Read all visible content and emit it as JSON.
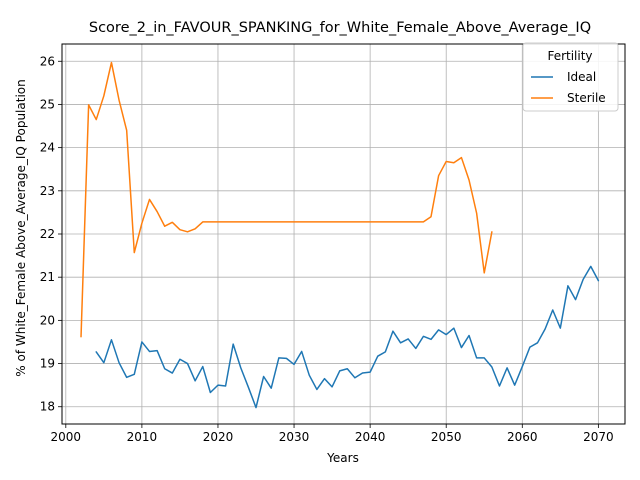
{
  "chart_data": {
    "type": "line",
    "title": "Score_2_in_FAVOUR_SPANKING_for_White_Female_Above_Average_IQ",
    "xlabel": "Years",
    "ylabel": "% of White_Female Above_Average_IQ Population",
    "xlim": [
      1999.5,
      2073.5
    ],
    "ylim": [
      17.6,
      26.4
    ],
    "xticks": [
      2000,
      2010,
      2020,
      2030,
      2040,
      2050,
      2060,
      2070
    ],
    "yticks": [
      18,
      19,
      20,
      21,
      22,
      23,
      24,
      25,
      26
    ],
    "grid": true,
    "legend": {
      "title": "Fertility",
      "placement": "top-right"
    },
    "series": [
      {
        "name": "Ideal",
        "color": "#1f77b4",
        "x": [
          2004,
          2005,
          2006,
          2007,
          2008,
          2009,
          2010,
          2011,
          2012,
          2013,
          2014,
          2015,
          2016,
          2017,
          2018,
          2019,
          2020,
          2021,
          2022,
          2023,
          2024,
          2025,
          2026,
          2027,
          2028,
          2029,
          2030,
          2031,
          2032,
          2033,
          2034,
          2035,
          2036,
          2037,
          2038,
          2039,
          2040,
          2041,
          2042,
          2043,
          2044,
          2045,
          2046,
          2047,
          2048,
          2049,
          2050,
          2051,
          2052,
          2053,
          2054,
          2055,
          2056,
          2057,
          2058,
          2059,
          2060,
          2061,
          2062,
          2063,
          2064,
          2065,
          2066,
          2067,
          2068,
          2069,
          2070
        ],
        "values": [
          19.27,
          19.02,
          19.55,
          19.02,
          18.68,
          18.75,
          19.5,
          19.28,
          19.3,
          18.88,
          18.78,
          19.1,
          19.0,
          18.6,
          18.93,
          18.33,
          18.5,
          18.48,
          19.45,
          18.9,
          18.45,
          17.98,
          18.7,
          18.43,
          19.13,
          19.12,
          18.98,
          19.28,
          18.73,
          18.4,
          18.65,
          18.46,
          18.83,
          18.88,
          18.67,
          18.78,
          18.8,
          19.17,
          19.27,
          19.75,
          19.48,
          19.57,
          19.35,
          19.63,
          19.56,
          19.78,
          19.67,
          19.82,
          19.37,
          19.65,
          19.13,
          19.13,
          18.92,
          18.48,
          18.9,
          18.5,
          18.93,
          19.38,
          19.48,
          19.8,
          20.24,
          19.82,
          20.8,
          20.48,
          20.95,
          21.25,
          20.92
        ]
      },
      {
        "name": "Sterile",
        "color": "#ff7f0e",
        "x": [
          2002,
          2003,
          2004,
          2005,
          2006,
          2007,
          2008,
          2009,
          2010,
          2011,
          2012,
          2013,
          2014,
          2015,
          2016,
          2017,
          2018,
          2019,
          2020,
          2021,
          2022,
          2023,
          2024,
          2025,
          2026,
          2027,
          2028,
          2029,
          2030,
          2031,
          2032,
          2033,
          2034,
          2035,
          2036,
          2037,
          2038,
          2039,
          2040,
          2041,
          2042,
          2043,
          2044,
          2045,
          2046,
          2047,
          2048,
          2049,
          2050,
          2051,
          2052,
          2053,
          2054,
          2055,
          2056
        ],
        "values": [
          19.62,
          24.99,
          24.65,
          25.2,
          25.97,
          25.1,
          24.4,
          21.57,
          22.25,
          22.8,
          22.52,
          22.18,
          22.27,
          22.1,
          22.05,
          22.12,
          22.28,
          22.28,
          22.28,
          22.28,
          22.28,
          22.28,
          22.28,
          22.28,
          22.28,
          22.28,
          22.28,
          22.28,
          22.28,
          22.28,
          22.28,
          22.28,
          22.28,
          22.28,
          22.28,
          22.28,
          22.28,
          22.28,
          22.28,
          22.28,
          22.28,
          22.28,
          22.28,
          22.28,
          22.28,
          22.28,
          22.4,
          23.35,
          23.68,
          23.65,
          23.77,
          23.25,
          22.48,
          21.1,
          22.05
        ]
      }
    ]
  }
}
